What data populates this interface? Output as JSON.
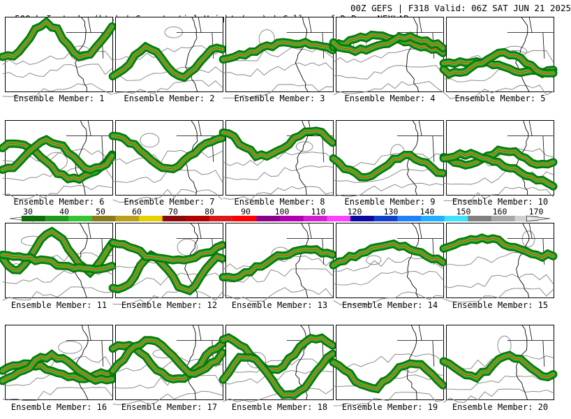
{
  "header": {
    "left": "500mb Isotachs (kts) | Geopotential Height (gpm) | College of DuPage NEXLAB",
    "right": "00Z GEFS | F318 Valid: 06Z SAT JUN 21 2025"
  },
  "panels": [
    {
      "label": "Ensemble Member: 1"
    },
    {
      "label": "Ensemble Member: 2"
    },
    {
      "label": "Ensemble Member: 3"
    },
    {
      "label": "Ensemble Member: 4"
    },
    {
      "label": "Ensemble Member: 5"
    },
    {
      "label": "Ensemble Member: 6"
    },
    {
      "label": "Ensemble Member: 7"
    },
    {
      "label": "Ensemble Member: 8"
    },
    {
      "label": "Ensemble Member: 9"
    },
    {
      "label": "Ensemble Member: 10"
    },
    {
      "label": "Ensemble Member: 11"
    },
    {
      "label": "Ensemble Member: 12"
    },
    {
      "label": "Ensemble Member: 13"
    },
    {
      "label": "Ensemble Member: 14"
    },
    {
      "label": "Ensemble Member: 15"
    },
    {
      "label": "Ensemble Member: 16"
    },
    {
      "label": "Ensemble Member: 17"
    },
    {
      "label": "Ensemble Member: 18"
    },
    {
      "label": "Ensemble Member: 19"
    },
    {
      "label": "Ensemble Member: 20"
    }
  ],
  "colorbar": {
    "labels": [
      "30",
      "40",
      "50",
      "60",
      "70",
      "80",
      "90",
      "100",
      "110",
      "120",
      "130",
      "140",
      "150",
      "160",
      "170"
    ],
    "colors": [
      "#0a6e0a",
      "#1f9a1f",
      "#34c534",
      "#8a7a1e",
      "#b8a01a",
      "#e6d000",
      "#8b0a0a",
      "#b00000",
      "#d81a1a",
      "#ff0000",
      "#8a008a",
      "#b000b0",
      "#d020d0",
      "#ff40ff",
      "#0a0aa0",
      "#1040d0",
      "#2080ff",
      "#20b0ff",
      "#40e0ff",
      "#808080",
      "#a8a8a8",
      "#d0d0d0"
    ]
  }
}
